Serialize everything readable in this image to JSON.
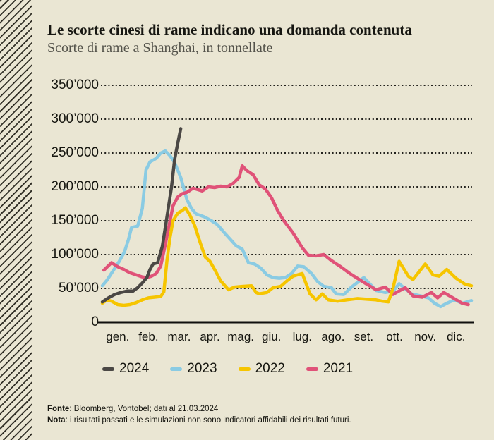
{
  "colors": {
    "background": "#eae6d3",
    "stripe": "#35332a",
    "axis": "#15150f",
    "series_2024": "#4b4845",
    "series_2023": "#8acbe3",
    "series_2022": "#f6c500",
    "series_2021": "#e05278"
  },
  "chart_data": {
    "type": "line",
    "title": "Le scorte cinesi di rame indicano una domanda contenuta",
    "subtitle": "Scorte di rame a Shanghai, in tonnellate",
    "unit": "tonnellate",
    "x_categories": [
      "gen.",
      "feb.",
      "mar.",
      "apr.",
      "mag.",
      "giu.",
      "lug.",
      "ago.",
      "set.",
      "ott.",
      "nov.",
      "dic."
    ],
    "y_ticks": [
      0,
      50000,
      100000,
      150000,
      200000,
      250000,
      300000,
      350000
    ],
    "y_tick_labels": [
      "0",
      "50’000",
      "100’000",
      "150’000",
      "200’000",
      "250’000",
      "300’000",
      "350’000"
    ],
    "ylim": [
      0,
      350000
    ],
    "grid": "dotted-horizontal",
    "legend_position": "bottom",
    "draw_order": [
      "2023",
      "2021",
      "2022",
      "2024"
    ],
    "series": [
      {
        "name": "2024",
        "color": "#4b4845",
        "points": [
          [
            0,
            30000
          ],
          [
            0.2,
            36000
          ],
          [
            0.4,
            41000
          ],
          [
            0.6,
            44000
          ],
          [
            0.8,
            46000
          ],
          [
            1.0,
            46000
          ],
          [
            1.15,
            51000
          ],
          [
            1.3,
            58000
          ],
          [
            1.45,
            66000
          ],
          [
            1.55,
            78000
          ],
          [
            1.65,
            86000
          ],
          [
            1.8,
            88000
          ],
          [
            1.95,
            112000
          ],
          [
            2.05,
            140000
          ],
          [
            2.15,
            170000
          ],
          [
            2.25,
            200000
          ],
          [
            2.35,
            240000
          ],
          [
            2.45,
            264000
          ],
          [
            2.55,
            286000
          ]
        ]
      },
      {
        "name": "2023",
        "color": "#8acbe3",
        "points": [
          [
            0,
            54000
          ],
          [
            0.15,
            62000
          ],
          [
            0.35,
            76000
          ],
          [
            0.55,
            90000
          ],
          [
            0.72,
            104000
          ],
          [
            0.85,
            122000
          ],
          [
            0.95,
            140000
          ],
          [
            1.15,
            142000
          ],
          [
            1.3,
            168000
          ],
          [
            1.42,
            225000
          ],
          [
            1.55,
            237000
          ],
          [
            1.75,
            242000
          ],
          [
            1.9,
            250000
          ],
          [
            2.05,
            253000
          ],
          [
            2.2,
            246000
          ],
          [
            2.35,
            236000
          ],
          [
            2.55,
            214000
          ],
          [
            2.75,
            181000
          ],
          [
            2.9,
            168000
          ],
          [
            3.05,
            160000
          ],
          [
            3.3,
            156000
          ],
          [
            3.55,
            150000
          ],
          [
            3.75,
            144000
          ],
          [
            3.95,
            133000
          ],
          [
            4.15,
            123000
          ],
          [
            4.35,
            113000
          ],
          [
            4.55,
            108000
          ],
          [
            4.75,
            88000
          ],
          [
            4.95,
            86000
          ],
          [
            5.15,
            80000
          ],
          [
            5.35,
            70000
          ],
          [
            5.55,
            66000
          ],
          [
            5.75,
            65000
          ],
          [
            5.95,
            66000
          ],
          [
            6.15,
            72000
          ],
          [
            6.35,
            83000
          ],
          [
            6.55,
            82000
          ],
          [
            6.8,
            72000
          ],
          [
            7.0,
            60000
          ],
          [
            7.2,
            53000
          ],
          [
            7.45,
            51000
          ],
          [
            7.6,
            42000
          ],
          [
            7.85,
            41000
          ],
          [
            8.1,
            52000
          ],
          [
            8.5,
            66000
          ],
          [
            8.9,
            47000
          ],
          [
            9.2,
            44000
          ],
          [
            9.45,
            46000
          ],
          [
            9.65,
            57000
          ],
          [
            10.05,
            42000
          ],
          [
            10.35,
            39000
          ],
          [
            10.6,
            36000
          ],
          [
            10.8,
            28000
          ],
          [
            11.0,
            23000
          ],
          [
            11.2,
            28000
          ],
          [
            11.45,
            33000
          ],
          [
            11.7,
            28000
          ],
          [
            12,
            32000
          ]
        ]
      },
      {
        "name": "2022",
        "color": "#f6c500",
        "points": [
          [
            0,
            28000
          ],
          [
            0.15,
            33000
          ],
          [
            0.3,
            31000
          ],
          [
            0.5,
            26000
          ],
          [
            0.7,
            25000
          ],
          [
            0.9,
            26000
          ],
          [
            1.1,
            29000
          ],
          [
            1.3,
            33000
          ],
          [
            1.5,
            36000
          ],
          [
            1.7,
            37000
          ],
          [
            1.9,
            38000
          ],
          [
            2.0,
            45000
          ],
          [
            2.1,
            90000
          ],
          [
            2.2,
            125000
          ],
          [
            2.3,
            150000
          ],
          [
            2.45,
            161000
          ],
          [
            2.6,
            165000
          ],
          [
            2.7,
            169000
          ],
          [
            2.85,
            158000
          ],
          [
            3.0,
            143000
          ],
          [
            3.2,
            115000
          ],
          [
            3.35,
            96000
          ],
          [
            3.5,
            90000
          ],
          [
            3.65,
            78000
          ],
          [
            3.85,
            61000
          ],
          [
            4.1,
            48000
          ],
          [
            4.3,
            52000
          ],
          [
            4.55,
            53000
          ],
          [
            4.85,
            54000
          ],
          [
            5.0,
            44000
          ],
          [
            5.1,
            42000
          ],
          [
            5.35,
            44000
          ],
          [
            5.55,
            51000
          ],
          [
            5.8,
            53000
          ],
          [
            6.0,
            61000
          ],
          [
            6.2,
            68000
          ],
          [
            6.5,
            72000
          ],
          [
            6.75,
            42000
          ],
          [
            6.95,
            33000
          ],
          [
            7.15,
            42000
          ],
          [
            7.35,
            33000
          ],
          [
            7.65,
            31000
          ],
          [
            7.95,
            33000
          ],
          [
            8.3,
            35000
          ],
          [
            8.6,
            34000
          ],
          [
            8.9,
            33000
          ],
          [
            9.1,
            31000
          ],
          [
            9.3,
            30000
          ],
          [
            9.45,
            50000
          ],
          [
            9.65,
            90000
          ],
          [
            9.95,
            68000
          ],
          [
            10.1,
            63000
          ],
          [
            10.5,
            86000
          ],
          [
            10.75,
            70000
          ],
          [
            10.95,
            68000
          ],
          [
            11.2,
            78000
          ],
          [
            11.5,
            65000
          ],
          [
            11.8,
            56000
          ],
          [
            12,
            54000
          ]
        ]
      },
      {
        "name": "2021",
        "color": "#e05278",
        "points": [
          [
            0.05,
            77000
          ],
          [
            0.3,
            88000
          ],
          [
            0.5,
            82000
          ],
          [
            0.7,
            78000
          ],
          [
            0.9,
            73000
          ],
          [
            1.1,
            70000
          ],
          [
            1.3,
            67000
          ],
          [
            1.45,
            66000
          ],
          [
            1.6,
            68000
          ],
          [
            1.75,
            72000
          ],
          [
            1.9,
            83000
          ],
          [
            2.05,
            115000
          ],
          [
            2.2,
            150000
          ],
          [
            2.3,
            172000
          ],
          [
            2.45,
            185000
          ],
          [
            2.6,
            190000
          ],
          [
            2.75,
            192000
          ],
          [
            2.95,
            198000
          ],
          [
            3.1,
            196000
          ],
          [
            3.25,
            194000
          ],
          [
            3.45,
            200000
          ],
          [
            3.65,
            199000
          ],
          [
            3.85,
            201000
          ],
          [
            4.05,
            200000
          ],
          [
            4.25,
            205000
          ],
          [
            4.45,
            214000
          ],
          [
            4.55,
            231000
          ],
          [
            4.7,
            224000
          ],
          [
            4.9,
            218000
          ],
          [
            5.1,
            203000
          ],
          [
            5.3,
            197000
          ],
          [
            5.5,
            184000
          ],
          [
            5.7,
            165000
          ],
          [
            5.9,
            150000
          ],
          [
            6.2,
            132000
          ],
          [
            6.5,
            110000
          ],
          [
            6.7,
            99000
          ],
          [
            6.95,
            98000
          ],
          [
            7.2,
            100000
          ],
          [
            7.45,
            91000
          ],
          [
            7.75,
            82000
          ],
          [
            8.05,
            72000
          ],
          [
            8.5,
            59000
          ],
          [
            8.9,
            48000
          ],
          [
            9.2,
            52000
          ],
          [
            9.45,
            41000
          ],
          [
            9.6,
            45000
          ],
          [
            9.85,
            51000
          ],
          [
            10.1,
            39000
          ],
          [
            10.4,
            37000
          ],
          [
            10.7,
            44000
          ],
          [
            10.9,
            36000
          ],
          [
            11.1,
            44000
          ],
          [
            11.4,
            36000
          ],
          [
            11.7,
            28000
          ],
          [
            11.9,
            26000
          ]
        ]
      }
    ],
    "legend": [
      {
        "label": "2024",
        "color": "#4b4845"
      },
      {
        "label": "2023",
        "color": "#8acbe3"
      },
      {
        "label": "2022",
        "color": "#f6c500"
      },
      {
        "label": "2021",
        "color": "#e05278"
      }
    ]
  },
  "footer": {
    "source_label": "Fonte",
    "source_text": ": Bloomberg, Vontobel; dati al 21.03.2024",
    "note_label": "Nota",
    "note_text": ": i risultati passati e le simulazioni non sono indicatori affidabili dei risultati futuri."
  }
}
